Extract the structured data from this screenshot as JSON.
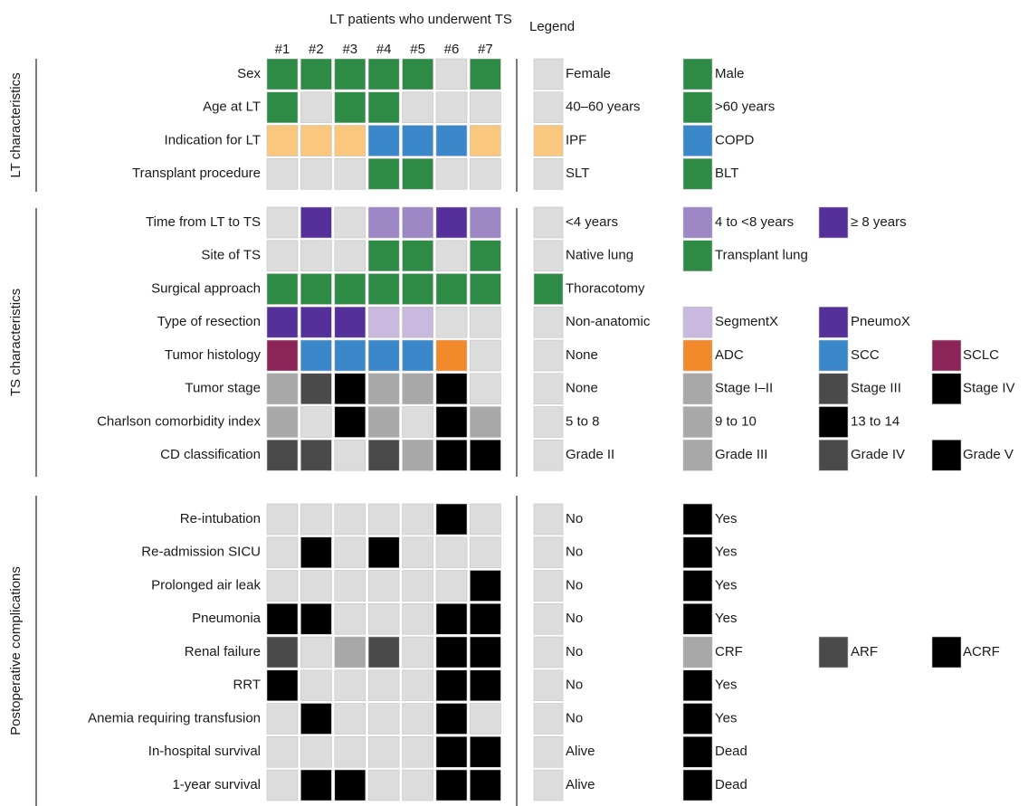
{
  "header": {
    "title": "LT patients who underwent TS",
    "legend_title": "Legend",
    "patients": [
      "#1",
      "#2",
      "#3",
      "#4",
      "#5",
      "#6",
      "#7"
    ]
  },
  "groups": [
    {
      "label": "LT characteristics",
      "rows": [
        {
          "label": "Sex",
          "cells": [
            "#2e8b46",
            "#2e8b46",
            "#2e8b46",
            "#2e8b46",
            "#2e8b46",
            "#dcdcdc",
            "#2e8b46"
          ],
          "legend": [
            {
              "label": "Female",
              "color": "#dcdcdc"
            },
            {
              "label": "Male",
              "color": "#2e8b46"
            }
          ]
        },
        {
          "label": "Age at LT",
          "cells": [
            "#2e8b46",
            "#dcdcdc",
            "#2e8b46",
            "#2e8b46",
            "#dcdcdc",
            "#dcdcdc",
            "#dcdcdc"
          ],
          "legend": [
            {
              "label": "40–60 years",
              "color": "#dcdcdc"
            },
            {
              "label": ">60 years",
              "color": "#2e8b46"
            }
          ]
        },
        {
          "label": "Indication for LT",
          "cells": [
            "#f9c77e",
            "#f9c77e",
            "#f9c77e",
            "#3a87c9",
            "#3a87c9",
            "#3a87c9",
            "#f9c77e"
          ],
          "legend": [
            {
              "label": "IPF",
              "color": "#f9c77e"
            },
            {
              "label": "COPD",
              "color": "#3a87c9"
            }
          ]
        },
        {
          "label": "Transplant procedure",
          "cells": [
            "#dcdcdc",
            "#dcdcdc",
            "#dcdcdc",
            "#2e8b46",
            "#2e8b46",
            "#dcdcdc",
            "#dcdcdc"
          ],
          "legend": [
            {
              "label": "SLT",
              "color": "#dcdcdc"
            },
            {
              "label": "BLT",
              "color": "#2e8b46"
            }
          ]
        }
      ]
    },
    {
      "label": "TS characteristics",
      "rows": [
        {
          "label": "Time from LT to TS",
          "cells": [
            "#dcdcdc",
            "#55309a",
            "#dcdcdc",
            "#9d87c5",
            "#9d87c5",
            "#55309a",
            "#9d87c5"
          ],
          "legend": [
            {
              "label": "<4 years",
              "color": "#dcdcdc"
            },
            {
              "label": "4 to <8 years",
              "color": "#9d87c5"
            },
            {
              "label": "≥ 8 years",
              "color": "#55309a"
            }
          ]
        },
        {
          "label": "Site of TS",
          "cells": [
            "#dcdcdc",
            "#dcdcdc",
            "#dcdcdc",
            "#2e8b46",
            "#2e8b46",
            "#dcdcdc",
            "#2e8b46"
          ],
          "legend": [
            {
              "label": "Native lung",
              "color": "#dcdcdc"
            },
            {
              "label": "Transplant lung",
              "color": "#2e8b46"
            }
          ]
        },
        {
          "label": "Surgical approach",
          "cells": [
            "#2e8b46",
            "#2e8b46",
            "#2e8b46",
            "#2e8b46",
            "#2e8b46",
            "#2e8b46",
            "#2e8b46"
          ],
          "legend": [
            {
              "label": "Thoracotomy",
              "color": "#2e8b46"
            }
          ]
        },
        {
          "label": "Type of resection",
          "cells": [
            "#55309a",
            "#55309a",
            "#55309a",
            "#cab9de",
            "#cab9de",
            "#dcdcdc",
            "#dcdcdc"
          ],
          "legend": [
            {
              "label": "Non-anatomic",
              "color": "#dcdcdc"
            },
            {
              "label": "SegmentX",
              "color": "#cab9de"
            },
            {
              "label": "PneumoX",
              "color": "#55309a"
            }
          ]
        },
        {
          "label": "Tumor histology",
          "cells": [
            "#8b2457",
            "#3a87c9",
            "#3a87c9",
            "#3a87c9",
            "#3a87c9",
            "#f28a2c",
            "#dcdcdc"
          ],
          "legend": [
            {
              "label": "None",
              "color": "#dcdcdc"
            },
            {
              "label": "ADC",
              "color": "#f28a2c"
            },
            {
              "label": "SCC",
              "color": "#3a87c9"
            },
            {
              "label": "SCLC",
              "color": "#8b2457"
            }
          ]
        },
        {
          "label": "Tumor stage",
          "cells": [
            "#a8a8a8",
            "#4a4a4a",
            "#000000",
            "#a8a8a8",
            "#a8a8a8",
            "#000000",
            "#dcdcdc"
          ],
          "legend": [
            {
              "label": "None",
              "color": "#dcdcdc"
            },
            {
              "label": "Stage I–II",
              "color": "#a8a8a8"
            },
            {
              "label": "Stage III",
              "color": "#4a4a4a"
            },
            {
              "label": "Stage IV",
              "color": "#000000"
            }
          ]
        },
        {
          "label": "Charlson comorbidity index",
          "cells": [
            "#a8a8a8",
            "#dcdcdc",
            "#000000",
            "#a8a8a8",
            "#dcdcdc",
            "#000000",
            "#a8a8a8"
          ],
          "legend": [
            {
              "label": "5 to 8",
              "color": "#dcdcdc"
            },
            {
              "label": "9 to 10",
              "color": "#a8a8a8"
            },
            {
              "label": "13 to 14",
              "color": "#000000"
            }
          ]
        },
        {
          "label": "CD classification",
          "cells": [
            "#4a4a4a",
            "#4a4a4a",
            "#dcdcdc",
            "#4a4a4a",
            "#a8a8a8",
            "#000000",
            "#000000"
          ],
          "legend": [
            {
              "label": "Grade II",
              "color": "#dcdcdc"
            },
            {
              "label": "Grade III",
              "color": "#a8a8a8"
            },
            {
              "label": "Grade IV",
              "color": "#4a4a4a"
            },
            {
              "label": "Grade V",
              "color": "#000000"
            }
          ]
        }
      ]
    },
    {
      "label": "Postoperative complications",
      "rows": [
        {
          "label": "Re-intubation",
          "cells": [
            "#dcdcdc",
            "#dcdcdc",
            "#dcdcdc",
            "#dcdcdc",
            "#dcdcdc",
            "#000000",
            "#dcdcdc"
          ],
          "legend": [
            {
              "label": "No",
              "color": "#dcdcdc"
            },
            {
              "label": "Yes",
              "color": "#000000"
            }
          ]
        },
        {
          "label": "Re-admission SICU",
          "cells": [
            "#dcdcdc",
            "#000000",
            "#dcdcdc",
            "#000000",
            "#dcdcdc",
            "#dcdcdc",
            "#dcdcdc"
          ],
          "legend": [
            {
              "label": "No",
              "color": "#dcdcdc"
            },
            {
              "label": "Yes",
              "color": "#000000"
            }
          ]
        },
        {
          "label": "Prolonged air leak",
          "cells": [
            "#dcdcdc",
            "#dcdcdc",
            "#dcdcdc",
            "#dcdcdc",
            "#dcdcdc",
            "#dcdcdc",
            "#000000"
          ],
          "legend": [
            {
              "label": "No",
              "color": "#dcdcdc"
            },
            {
              "label": "Yes",
              "color": "#000000"
            }
          ]
        },
        {
          "label": "Pneumonia",
          "cells": [
            "#000000",
            "#000000",
            "#dcdcdc",
            "#dcdcdc",
            "#dcdcdc",
            "#000000",
            "#000000"
          ],
          "legend": [
            {
              "label": "No",
              "color": "#dcdcdc"
            },
            {
              "label": "Yes",
              "color": "#000000"
            }
          ]
        },
        {
          "label": "Renal failure",
          "cells": [
            "#4a4a4a",
            "#dcdcdc",
            "#a8a8a8",
            "#4a4a4a",
            "#dcdcdc",
            "#000000",
            "#000000"
          ],
          "legend": [
            {
              "label": "No",
              "color": "#dcdcdc"
            },
            {
              "label": "CRF",
              "color": "#a8a8a8"
            },
            {
              "label": "ARF",
              "color": "#4a4a4a"
            },
            {
              "label": "ACRF",
              "color": "#000000"
            }
          ]
        },
        {
          "label": "RRT",
          "cells": [
            "#000000",
            "#dcdcdc",
            "#dcdcdc",
            "#dcdcdc",
            "#dcdcdc",
            "#000000",
            "#000000"
          ],
          "legend": [
            {
              "label": "No",
              "color": "#dcdcdc"
            },
            {
              "label": "Yes",
              "color": "#000000"
            }
          ]
        },
        {
          "label": "Anemia requiring transfusion",
          "cells": [
            "#dcdcdc",
            "#000000",
            "#dcdcdc",
            "#dcdcdc",
            "#dcdcdc",
            "#000000",
            "#dcdcdc"
          ],
          "legend": [
            {
              "label": "No",
              "color": "#dcdcdc"
            },
            {
              "label": "Yes",
              "color": "#000000"
            }
          ]
        },
        {
          "label": "In-hospital survival",
          "cells": [
            "#dcdcdc",
            "#dcdcdc",
            "#dcdcdc",
            "#dcdcdc",
            "#dcdcdc",
            "#000000",
            "#000000"
          ],
          "legend": [
            {
              "label": "Alive",
              "color": "#dcdcdc"
            },
            {
              "label": "Dead",
              "color": "#000000"
            }
          ]
        },
        {
          "label": "1-year survival",
          "cells": [
            "#dcdcdc",
            "#000000",
            "#000000",
            "#dcdcdc",
            "#dcdcdc",
            "#000000",
            "#000000"
          ],
          "legend": [
            {
              "label": "Alive",
              "color": "#dcdcdc"
            },
            {
              "label": "Dead",
              "color": "#000000"
            }
          ]
        }
      ]
    }
  ]
}
